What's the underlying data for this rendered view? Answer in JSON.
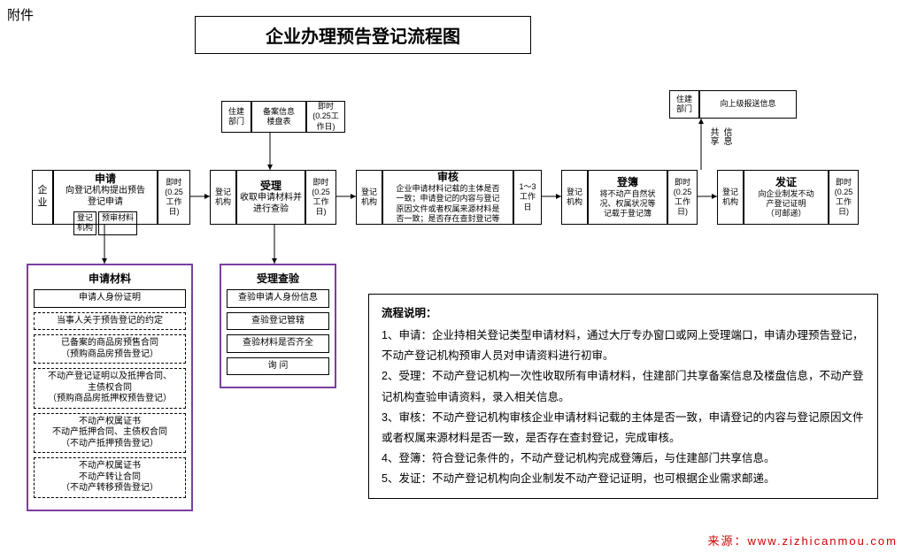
{
  "attachment": "附件",
  "title": "企业办理预告登记流程图",
  "top": {
    "dept1": "住建\n部门",
    "record": "备案信息\n楼盘表",
    "time1": "即时\n(0.25工\n作日)",
    "dept2": "住建\n部门",
    "report": "向上级报送信息",
    "shareLabel": "信息\n共享"
  },
  "mainRow": {
    "enterprise": "企\n业",
    "apply": {
      "head": "申请",
      "sub": "向登记机构提出预告\n登记申请",
      "agency": "登记\n机构",
      "preview": "预审材料"
    },
    "t1": "即时\n(0.25\n工作\n日)",
    "org1": "登记\n机构",
    "accept": {
      "head": "受理",
      "sub": "收取申请材料并\n进行查验"
    },
    "t2": "即时\n(0.25\n工作\n日)",
    "org2": "登记\n机构",
    "review": {
      "head": "审核",
      "sub": "企业申请材料记载的主体是否\n一致；申请登记的内容与登记\n原因文件或者权属来源材料是\n否一致；是否存在查封登记等"
    },
    "t3": "1～3\n工作\n日",
    "org3": "登记\n机构",
    "register": {
      "head": "登簿",
      "sub": "将不动产自然状\n况、权属状况等\n记载于登记簿"
    },
    "t4": "即时\n(0.25\n工作\n日)",
    "org4": "登记\n机构",
    "cert": {
      "head": "发证",
      "sub": "向企业制发不动\n产登记证明\n（可邮递）"
    },
    "t5": "即时\n(0.25\n工作\n日)"
  },
  "panelApply": {
    "title": "申请材料",
    "items": [
      "申请人身份证明",
      "当事人关于预告登记的约定",
      "已备案的商品房预售合同\n（预购商品房预告登记）",
      "不动产登记证明以及抵押合同、\n主债权合同\n（预购商品房抵押权预告登记）",
      "不动产权属证书\n不动产抵押合同、主债权合同\n（不动产抵押预告登记）",
      "不动产权属证书\n不动产转让合同\n（不动产转移预告登记）"
    ]
  },
  "panelCheck": {
    "title": "受理查验",
    "items": [
      "查验申请人身份信息",
      "查验登记管辖",
      "查验材料是否齐全",
      "询  问"
    ]
  },
  "desc": {
    "title": "流程说明：",
    "lines": [
      "1、申请：企业持相关登记类型申请材料，通过大厅专办窗口或网上受理端口，申请办理预告登记，不动产登记机构预审人员对申请资料进行初审。",
      "2、受理：不动产登记机构一次性收取所有申请材料，住建部门共享备案信息及楼盘信息，不动产登记机构查验申请资料，录入相关信息。",
      "3、审核：不动产登记机构审核企业申请材料记载的主体是否一致，申请登记的内容与登记原因文件或者权属来源材料是否一致，是否存在查封登记，完成审核。",
      "4、登簿：符合登记条件的，不动产登记机构完成登簿后，与住建部门共享信息。",
      "5、发证：不动产登记机构向企业制发不动产登记证明，也可根据企业需求邮递。"
    ]
  },
  "source": {
    "label": "来源：",
    "url": "www.zizhicanmou.com"
  },
  "colors": {
    "purple": "#7b3fa0",
    "red": "#d00000",
    "black": "#000000"
  }
}
